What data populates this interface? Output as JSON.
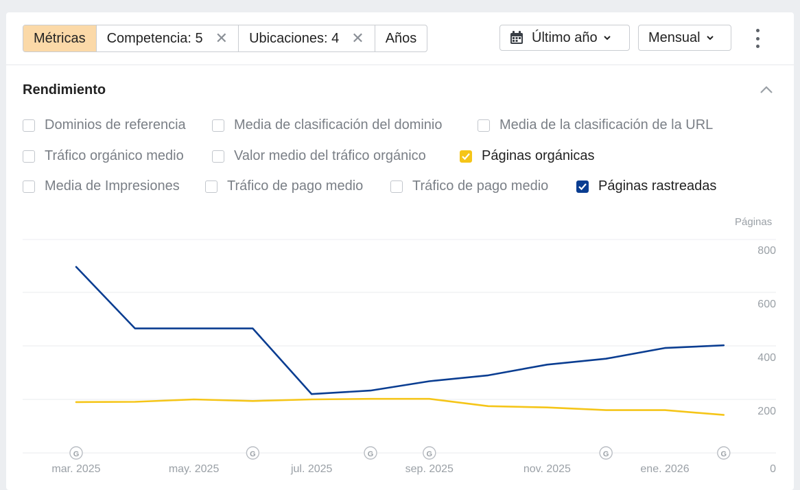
{
  "toolbar": {
    "segments": [
      "Métricas",
      "Competencia: 5",
      "Ubicaciones: 4",
      "Años"
    ],
    "period": "Último año",
    "frequency": "Mensual"
  },
  "section": {
    "title": "Rendimiento"
  },
  "metrics": [
    {
      "label": "Dominios de referencia",
      "checked": false
    },
    {
      "label": "Media de clasificación del dominio",
      "checked": false
    },
    {
      "label": "Media de la clasificación de la URL",
      "checked": false
    },
    {
      "label": "Tráfico orgánico medio",
      "checked": false
    },
    {
      "label": "Valor medio del tráfico orgánico",
      "checked": false
    },
    {
      "label": "Páginas orgánicas",
      "checked": true,
      "color": "#f5c518"
    },
    {
      "label": "Media de Impresiones",
      "checked": false
    },
    {
      "label": "Tráfico de pago medio",
      "checked": false
    },
    {
      "label": "Tráfico de pago medio",
      "checked": false
    },
    {
      "label": "Páginas rastreadas",
      "checked": true,
      "color": "#0a3d91"
    }
  ],
  "chart_data": {
    "type": "line",
    "ylabel": "Páginas",
    "ylim": [
      0,
      800
    ],
    "yticks": [
      0,
      200,
      400,
      600,
      800
    ],
    "x_month_labels": [
      "mar. 2025",
      "may. 2025",
      "jul. 2025",
      "sep. 2025",
      "nov. 2025",
      "ene. 2026"
    ],
    "x": [
      "mar. 2025",
      "abr. 2025",
      "may. 2025",
      "jun. 2025",
      "jul. 2025",
      "ago. 2025",
      "sep. 2025",
      "oct. 2025",
      "nov. 2025",
      "dic. 2025",
      "ene. 2026",
      "feb. 2026"
    ],
    "series": [
      {
        "name": "Páginas rastreadas",
        "color": "#0a3d91",
        "values": [
          695,
          465,
          465,
          465,
          220,
          233,
          268,
          290,
          330,
          352,
          392,
          402
        ]
      },
      {
        "name": "Páginas orgánicas",
        "color": "#f5c518",
        "values": [
          190,
          191,
          200,
          194,
          200,
          202,
          202,
          175,
          170,
          160,
          160,
          142
        ]
      }
    ],
    "google_update_markers": [
      "mar. 2025",
      "jun. 2025",
      "ago. 2025",
      "sep. 2025",
      "dic. 2025",
      "feb. 2026"
    ],
    "marker_symbol": "G",
    "grid": true
  }
}
